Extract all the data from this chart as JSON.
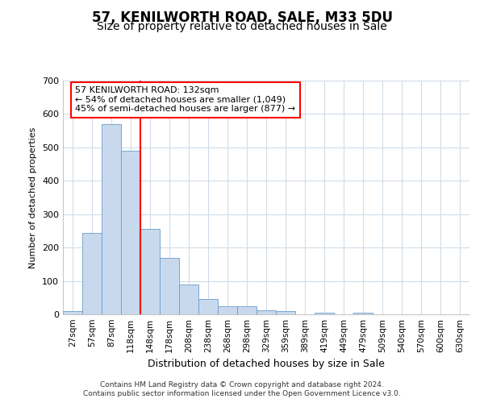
{
  "title": "57, KENILWORTH ROAD, SALE, M33 5DU",
  "subtitle": "Size of property relative to detached houses in Sale",
  "xlabel": "Distribution of detached houses by size in Sale",
  "ylabel": "Number of detached properties",
  "bin_labels": [
    "27sqm",
    "57sqm",
    "87sqm",
    "118sqm",
    "148sqm",
    "178sqm",
    "208sqm",
    "238sqm",
    "268sqm",
    "298sqm",
    "329sqm",
    "359sqm",
    "389sqm",
    "419sqm",
    "449sqm",
    "479sqm",
    "509sqm",
    "540sqm",
    "570sqm",
    "600sqm",
    "630sqm"
  ],
  "bar_heights": [
    10,
    245,
    570,
    490,
    255,
    170,
    90,
    45,
    25,
    25,
    12,
    10,
    0,
    5,
    0,
    5,
    0,
    0,
    0,
    0,
    0
  ],
  "bar_color": "#c9d9ed",
  "bar_edgecolor": "#6a9cc9",
  "annotation_line1": "57 KENILWORTH ROAD: 132sqm",
  "annotation_line2": "← 54% of detached houses are smaller (1,049)",
  "annotation_line3": "45% of semi-detached houses are larger (877) →",
  "ylim": [
    0,
    700
  ],
  "plot_bg_color": "#ffffff",
  "grid_color": "#d0dce8",
  "footer_line1": "Contains HM Land Registry data © Crown copyright and database right 2024.",
  "footer_line2": "Contains public sector information licensed under the Open Government Licence v3.0.",
  "title_fontsize": 12,
  "subtitle_fontsize": 10
}
